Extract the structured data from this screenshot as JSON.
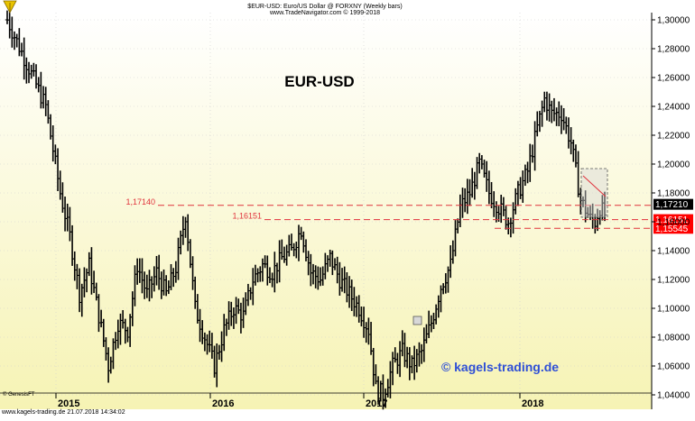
{
  "header": {
    "title": "$EUR-USD:  Euro/US Dollar @ FORXNY  (Weekly bars)",
    "copyright": "www.TradeNavigator.com © 1999-2018"
  },
  "footer": {
    "left": "www.kagels-trading.de   21.07.2018 14:34:02",
    "genesis": "© GenesisFT"
  },
  "watermark": "© kagels-trading.de",
  "colors": {
    "background_top": "#ffffff",
    "background_bottom": "#f6f3b4",
    "bars": "#000000",
    "resistance_line": "#e0323c",
    "price_tag_black": "#000000",
    "price_tag_red": "#ff0000",
    "watermark": "#2f4fd6"
  },
  "chart_data": {
    "type": "ohlc",
    "title": "EUR-USD",
    "xlabel": "",
    "ylabel": "",
    "ylim": [
      1.03,
      1.305
    ],
    "yticks": [
      "1,04000",
      "1,06000",
      "1,08000",
      "1,10000",
      "1,12000",
      "1,14000",
      "1,16000",
      "1,18000",
      "1,20000",
      "1,22000",
      "1,24000",
      "1,26000",
      "1,28000",
      "1,30000"
    ],
    "xticks": [
      "2015",
      "2016",
      "2017",
      "2018"
    ],
    "annotations": [
      {
        "text": "1,17140",
        "value": 1.1714
      },
      {
        "text": "1,16151",
        "value": 1.16151
      }
    ],
    "price_tags": [
      {
        "text": "1,17210",
        "value": 1.1721,
        "style": "black"
      },
      {
        "text": "1,16151",
        "value": 1.16151,
        "style": "red"
      },
      {
        "text": "1,15545",
        "value": 1.15545,
        "style": "red"
      }
    ],
    "anchors": [
      {
        "t": 0,
        "v": 1.3
      },
      {
        "t": 8,
        "v": 1.27
      },
      {
        "t": 16,
        "v": 1.24
      },
      {
        "t": 22,
        "v": 1.18
      },
      {
        "t": 26,
        "v": 1.15
      },
      {
        "t": 30,
        "v": 1.11
      },
      {
        "t": 34,
        "v": 1.13
      },
      {
        "t": 38,
        "v": 1.095
      },
      {
        "t": 42,
        "v": 1.06
      },
      {
        "t": 46,
        "v": 1.09
      },
      {
        "t": 50,
        "v": 1.085
      },
      {
        "t": 54,
        "v": 1.13
      },
      {
        "t": 58,
        "v": 1.11
      },
      {
        "t": 62,
        "v": 1.125
      },
      {
        "t": 66,
        "v": 1.11
      },
      {
        "t": 70,
        "v": 1.128
      },
      {
        "t": 74,
        "v": 1.165
      },
      {
        "t": 78,
        "v": 1.1
      },
      {
        "t": 82,
        "v": 1.08
      },
      {
        "t": 86,
        "v": 1.06
      },
      {
        "t": 90,
        "v": 1.085
      },
      {
        "t": 94,
        "v": 1.1
      },
      {
        "t": 98,
        "v": 1.095
      },
      {
        "t": 102,
        "v": 1.12
      },
      {
        "t": 106,
        "v": 1.13
      },
      {
        "t": 110,
        "v": 1.125
      },
      {
        "t": 114,
        "v": 1.135
      },
      {
        "t": 118,
        "v": 1.14
      },
      {
        "t": 122,
        "v": 1.155
      },
      {
        "t": 126,
        "v": 1.125
      },
      {
        "t": 130,
        "v": 1.12
      },
      {
        "t": 134,
        "v": 1.135
      },
      {
        "t": 138,
        "v": 1.12
      },
      {
        "t": 142,
        "v": 1.11
      },
      {
        "t": 146,
        "v": 1.1
      },
      {
        "t": 150,
        "v": 1.085
      },
      {
        "t": 153,
        "v": 1.045
      },
      {
        "t": 156,
        "v": 1.04
      },
      {
        "t": 160,
        "v": 1.06
      },
      {
        "t": 164,
        "v": 1.07
      },
      {
        "t": 168,
        "v": 1.06
      },
      {
        "t": 172,
        "v": 1.07
      },
      {
        "t": 176,
        "v": 1.09
      },
      {
        "t": 180,
        "v": 1.115
      },
      {
        "t": 184,
        "v": 1.13
      },
      {
        "t": 188,
        "v": 1.17
      },
      {
        "t": 192,
        "v": 1.18
      },
      {
        "t": 196,
        "v": 1.2
      },
      {
        "t": 200,
        "v": 1.18
      },
      {
        "t": 204,
        "v": 1.17
      },
      {
        "t": 208,
        "v": 1.16
      },
      {
        "t": 212,
        "v": 1.18
      },
      {
        "t": 216,
        "v": 1.195
      },
      {
        "t": 220,
        "v": 1.225
      },
      {
        "t": 223,
        "v": 1.245
      },
      {
        "t": 226,
        "v": 1.235
      },
      {
        "t": 230,
        "v": 1.235
      },
      {
        "t": 234,
        "v": 1.215
      },
      {
        "t": 238,
        "v": 1.175
      },
      {
        "t": 242,
        "v": 1.162
      },
      {
        "t": 244,
        "v": 1.16
      },
      {
        "t": 246,
        "v": 1.17
      },
      {
        "t": 248,
        "v": 1.165
      }
    ]
  }
}
